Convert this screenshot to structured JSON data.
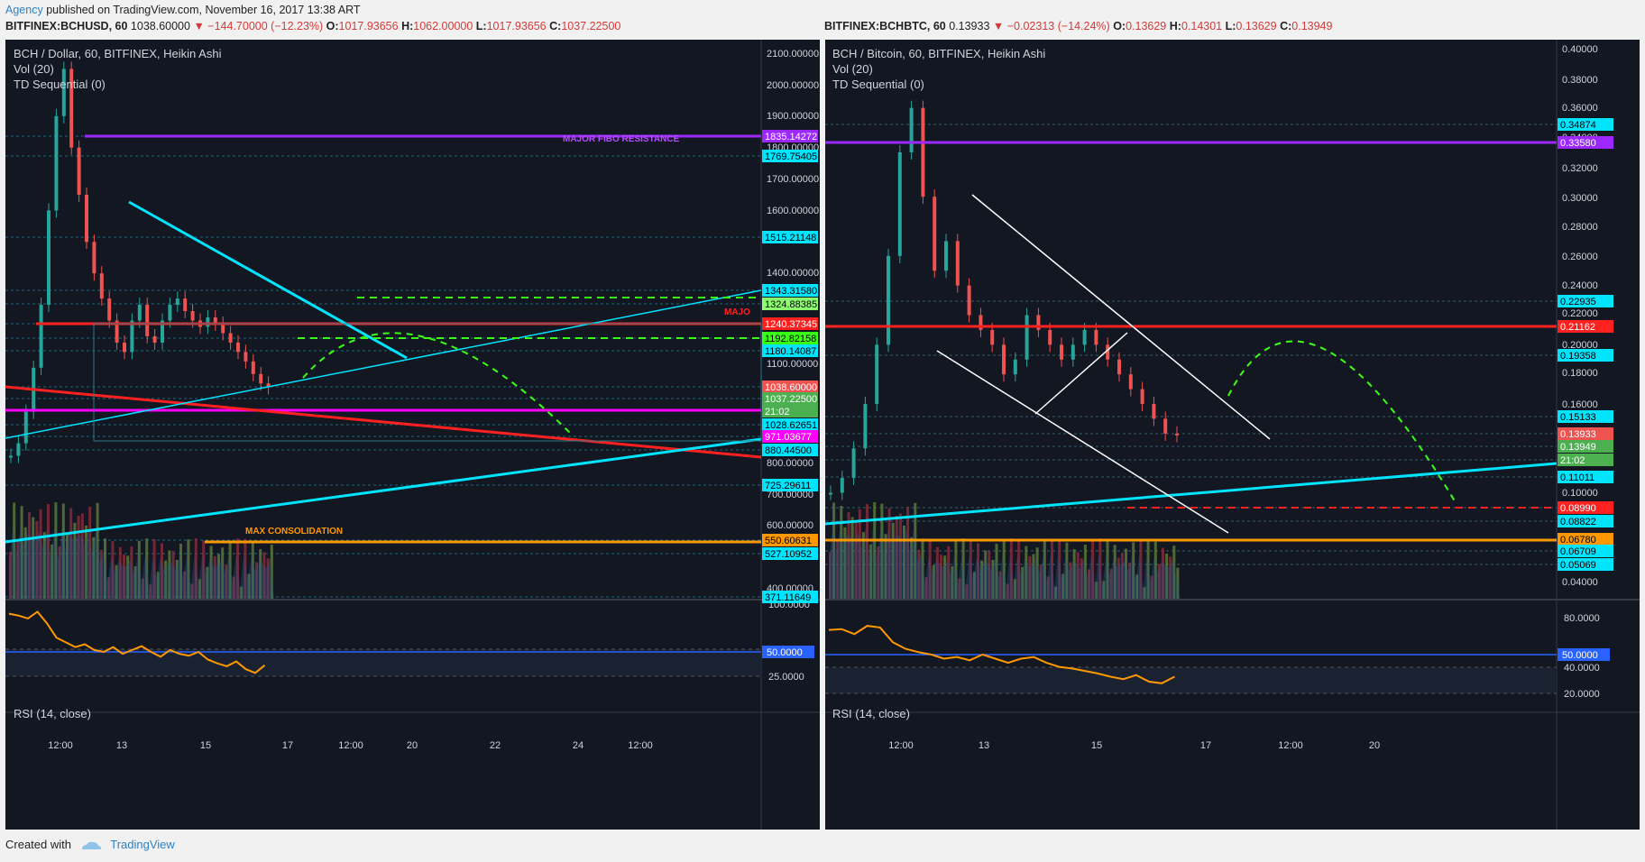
{
  "header": {
    "agency": "Agency",
    "published": "published on TradingView.com, November 16, 2017 13:38 ART"
  },
  "charts": [
    {
      "id": "left",
      "quote": {
        "symbol": "BITFINEX:BCHUSD, 60",
        "last": "1038.60000",
        "change": "▼ −144.70000 (−12.23%)",
        "O": "1017.93656",
        "H": "1062.00000",
        "L": "1017.93656",
        "C": "1037.22500"
      },
      "legend": [
        "BCH / Dollar, 60, BITFINEX, Heikin Ashi",
        "Vol (20)",
        "TD Sequential (0)"
      ],
      "rsi_label": "RSI (14, close)",
      "y_ticks": [
        "2100.00000",
        "2000.00000",
        "1900.00000",
        "1800.00000",
        "1700.00000",
        "1600.00000",
        "1400.00000",
        "1100.00000",
        "800.00000",
        "700.00000",
        "600.00000",
        "400.00000"
      ],
      "rsi_ticks": [
        "100.0000",
        "75.0000",
        "25.0000"
      ],
      "x_ticks": [
        "12:00",
        "13",
        "15",
        "17",
        "12:00",
        "20",
        "22",
        "24",
        "12:00"
      ],
      "price_tags": [
        {
          "text": "1835.14272",
          "color": "#9c27ff",
          "fg": "#ffffff"
        },
        {
          "text": "1769.75405",
          "color": "#00e5ff",
          "fg": "#000000"
        },
        {
          "text": "1515.21148",
          "color": "#00e5ff",
          "fg": "#000000"
        },
        {
          "text": "1343.31580",
          "color": "#00e5ff",
          "fg": "#000000"
        },
        {
          "text": "1324.88385",
          "color": "#8cff6e",
          "fg": "#000000"
        },
        {
          "text": "1240.37345",
          "color": "#ff2020",
          "fg": "#ffffff"
        },
        {
          "text": "1192.82158",
          "color": "#39ff14",
          "fg": "#000000"
        },
        {
          "text": "1180.14087",
          "color": "#00e5ff",
          "fg": "#000000"
        },
        {
          "text": "1038.60000",
          "color": "#ef5350",
          "fg": "#ffffff"
        },
        {
          "text": "1037.22500",
          "color": "#4caf50",
          "fg": "#ffffff"
        },
        {
          "text": "21:02",
          "color": "#4caf50",
          "fg": "#ffffff"
        },
        {
          "text": "1028.62651",
          "color": "#00e5ff",
          "fg": "#000000"
        },
        {
          "text": "971.03677",
          "color": "#ff00ff",
          "fg": "#ffffff"
        },
        {
          "text": "880.44500",
          "color": "#00e5ff",
          "fg": "#000000"
        },
        {
          "text": "725.29611",
          "color": "#00e5ff",
          "fg": "#000000"
        },
        {
          "text": "550.60631",
          "color": "#ff9800",
          "fg": "#000000"
        },
        {
          "text": "527.10952",
          "color": "#00e5ff",
          "fg": "#000000"
        },
        {
          "text": "371.11649",
          "color": "#00e5ff",
          "fg": "#000000"
        }
      ],
      "rsi_tag": "50.0000",
      "annotations": [
        "MAJOR FIBO RESISTANCE",
        "MAX CONSOLIDATION",
        "MAJO"
      ]
    },
    {
      "id": "right",
      "quote": {
        "symbol": "BITFINEX:BCHBTC, 60",
        "last": "0.13933",
        "change": "▼ −0.02313 (−14.24%)",
        "O": "0.13629",
        "H": "0.14301",
        "L": "0.13629",
        "C": "0.13949"
      },
      "legend": [
        "BCH / Bitcoin, 60, BITFINEX, Heikin Ashi",
        "Vol (20)",
        "TD Sequential (0)"
      ],
      "rsi_label": "RSI (14, close)",
      "y_ticks": [
        "0.40000",
        "0.38000",
        "0.36000",
        "0.34000",
        "0.32000",
        "0.30000",
        "0.28000",
        "0.26000",
        "0.24000",
        "0.22000",
        "0.20000",
        "0.18000",
        "0.16000",
        "0.10000",
        "0.04000"
      ],
      "rsi_ticks": [
        "80.0000",
        "40.0000",
        "20.0000"
      ],
      "x_ticks": [
        "12:00",
        "13",
        "15",
        "17",
        "12:00",
        "20"
      ],
      "price_tags": [
        {
          "text": "0.34874",
          "color": "#00e5ff",
          "fg": "#000000"
        },
        {
          "text": "0.33580",
          "color": "#9c27ff",
          "fg": "#ffffff"
        },
        {
          "text": "0.22935",
          "color": "#00e5ff",
          "fg": "#000000"
        },
        {
          "text": "0.21162",
          "color": "#ff2020",
          "fg": "#ffffff"
        },
        {
          "text": "0.19358",
          "color": "#00e5ff",
          "fg": "#000000"
        },
        {
          "text": "0.15133",
          "color": "#00e5ff",
          "fg": "#000000"
        },
        {
          "text": "0.13933",
          "color": "#ef5350",
          "fg": "#ffffff"
        },
        {
          "text": "0.13949",
          "color": "#4caf50",
          "fg": "#ffffff"
        },
        {
          "text": "21:02",
          "color": "#4caf50",
          "fg": "#ffffff"
        },
        {
          "text": "0.11011",
          "color": "#00e5ff",
          "fg": "#000000"
        },
        {
          "text": "0.08990",
          "color": "#ff2020",
          "fg": "#ffffff"
        },
        {
          "text": "0.08822",
          "color": "#00e5ff",
          "fg": "#000000"
        },
        {
          "text": "0.06780",
          "color": "#ff9800",
          "fg": "#000000"
        },
        {
          "text": "0.06709",
          "color": "#00e5ff",
          "fg": "#000000"
        },
        {
          "text": "0.05069",
          "color": "#00e5ff",
          "fg": "#000000"
        }
      ],
      "rsi_tag": "50.0000",
      "annotations": []
    }
  ],
  "footer": {
    "created_with": "Created with",
    "brand": "TradingView"
  },
  "chart_data": [
    {
      "type": "candlestick",
      "title": "BCH / Dollar, 60, BITFINEX, Heikin Ashi",
      "ylim": [
        380,
        2160
      ],
      "price_series": [
        820,
        860,
        960,
        1100,
        1300,
        1600,
        1900,
        2050,
        1800,
        1650,
        1500,
        1400,
        1320,
        1250,
        1180,
        1150,
        1250,
        1300,
        1200,
        1180,
        1250,
        1300,
        1320,
        1280,
        1250,
        1230,
        1260,
        1240,
        1210,
        1180,
        1150,
        1120,
        1080,
        1050,
        1038
      ],
      "rsi_series": [
        90,
        88,
        85,
        92,
        80,
        65,
        60,
        55,
        58,
        52,
        50,
        55,
        48,
        52,
        56,
        50,
        45,
        52,
        48,
        46,
        50,
        42,
        38,
        35,
        40,
        32,
        28,
        36
      ]
    },
    {
      "type": "candlestick",
      "title": "BCH / Bitcoin, 60, BITFINEX, Heikin Ashi",
      "ylim": [
        0.03,
        0.41
      ],
      "price_series": [
        0.1,
        0.11,
        0.13,
        0.16,
        0.2,
        0.26,
        0.33,
        0.36,
        0.3,
        0.25,
        0.27,
        0.24,
        0.22,
        0.21,
        0.2,
        0.18,
        0.19,
        0.22,
        0.21,
        0.2,
        0.19,
        0.2,
        0.21,
        0.2,
        0.19,
        0.18,
        0.17,
        0.16,
        0.15,
        0.14,
        0.139
      ],
      "rsi_series": [
        85,
        86,
        80,
        90,
        88,
        70,
        62,
        58,
        55,
        50,
        52,
        48,
        55,
        50,
        45,
        50,
        52,
        45,
        40,
        38,
        35,
        32,
        28,
        25,
        30,
        22,
        20,
        28
      ]
    }
  ]
}
